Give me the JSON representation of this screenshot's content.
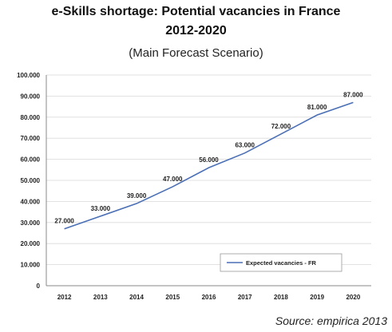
{
  "title_line1": "e-Skills shortage: Potential vacancies in France",
  "title_line2": "2012-2020",
  "subtitle": "(Main Forecast Scenario)",
  "source": "Source: empirica 2013",
  "chart_data": {
    "type": "line",
    "categories": [
      "2012",
      "2013",
      "2014",
      "2015",
      "2016",
      "2017",
      "2018",
      "2019",
      "2020"
    ],
    "series": [
      {
        "name": "Expected vacancies - FR",
        "values": [
          27000,
          33000,
          39000,
          47000,
          56000,
          63000,
          72000,
          81000,
          87000
        ],
        "labels": [
          "27.000",
          "33.000",
          "39.000",
          "47.000",
          "56.000",
          "63.000",
          "72.000",
          "81.000",
          "87.000"
        ],
        "color": "#4a6fb5"
      }
    ],
    "ylim": [
      0,
      100000
    ],
    "yticks": [
      0,
      10000,
      20000,
      30000,
      40000,
      50000,
      60000,
      70000,
      80000,
      90000,
      100000
    ],
    "ytick_labels": [
      "0",
      "10.000",
      "20.000",
      "30.000",
      "40.000",
      "50.000",
      "60.000",
      "70.000",
      "80.000",
      "90.000",
      "100.000"
    ],
    "grid": true,
    "legend_position": "bottom-right",
    "xlabel": "",
    "ylabel": ""
  }
}
